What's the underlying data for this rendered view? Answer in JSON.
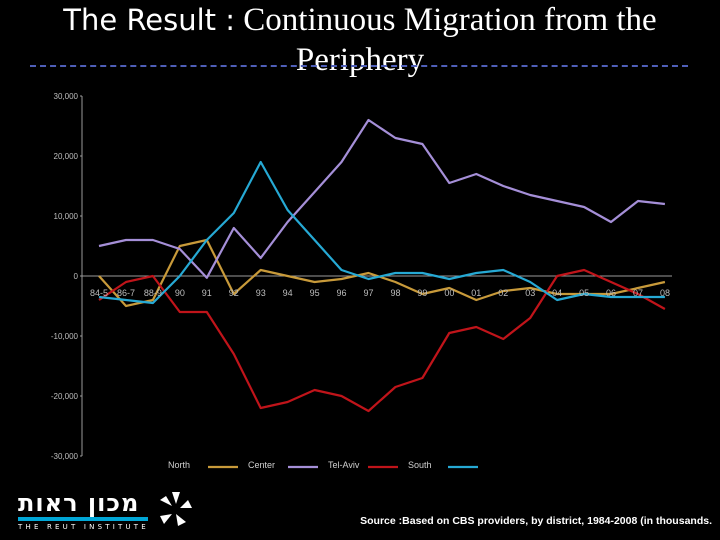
{
  "slide": {
    "title_prefix": "The Result :",
    "title_main": "Continuous Migration from the Periphery",
    "source": "Source :Based on CBS providers, by district, 1984-2008 (in thousands.",
    "logo_hebrew": "מכון ראות",
    "logo_english": "THE REUT INSTITUTE"
  },
  "chart_data": {
    "type": "line",
    "categories": [
      "84-5",
      "86-7",
      "88-9",
      "90",
      "91",
      "92",
      "93",
      "94",
      "95",
      "96",
      "97",
      "98",
      "99",
      "00",
      "01",
      "02",
      "03",
      "04",
      "05",
      "06",
      "07",
      "08"
    ],
    "ylim": [
      -30000,
      30000
    ],
    "y_ticks": [
      30000,
      20000,
      10000,
      0,
      -10000,
      -20000,
      -30000
    ],
    "y_tick_labels": [
      "30,000",
      "20,000",
      "10,000",
      "0",
      "-10,000",
      "-20,000",
      "-30,000"
    ],
    "grid": false,
    "legend_position": "bottom",
    "series": [
      {
        "name": "North",
        "color": "#c89a3a",
        "values": [
          0,
          -5000,
          -4000,
          5000,
          6000,
          -3000,
          1000,
          0,
          -1000,
          -500,
          500,
          -1000,
          -3000,
          -2000,
          -4000,
          -2500,
          -2000,
          -3000,
          -3000,
          -3000,
          -2000,
          -1000
        ]
      },
      {
        "name": "Center",
        "color": "#a58fd8",
        "values": [
          5000,
          6000,
          6000,
          4500,
          -300,
          8000,
          3000,
          9000,
          14000,
          19000,
          26000,
          23000,
          22000,
          15500,
          17000,
          15000,
          13500,
          12500,
          11500,
          9000,
          12500,
          12000
        ]
      },
      {
        "name": "Tel-Aviv",
        "color": "#c0141a",
        "values": [
          -4000,
          -1000,
          0,
          -6000,
          -6000,
          -13000,
          -22000,
          -21000,
          -19000,
          -20000,
          -22500,
          -18500,
          -17000,
          -9500,
          -8500,
          -10500,
          -7000,
          0,
          1000,
          -1000,
          -3000,
          -5500
        ]
      },
      {
        "name": "South",
        "color": "#26a9d4",
        "values": [
          -3500,
          -4000,
          -4500,
          0,
          6000,
          10500,
          19000,
          11000,
          6000,
          1000,
          -500,
          500,
          500,
          -500,
          500,
          1000,
          -1000,
          -4000,
          -3000,
          -3500,
          -3500,
          -3500
        ]
      }
    ]
  }
}
